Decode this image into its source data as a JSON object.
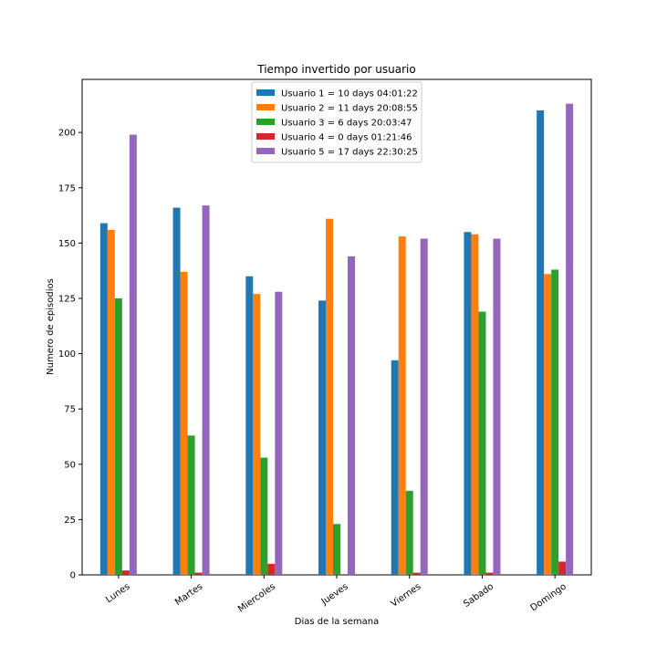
{
  "chart_data": {
    "type": "bar",
    "title": "Tiempo invertido por usuario",
    "xlabel": "Dias de la semana",
    "ylabel": "Numero de episodios",
    "ylim": [
      0,
      224
    ],
    "yticks": [
      0,
      25,
      50,
      75,
      100,
      125,
      150,
      175,
      200
    ],
    "categories": [
      "Lunes",
      "Martes",
      "Miercoles",
      "Jueves",
      "Viernes",
      "Sabado",
      "Domingo"
    ],
    "legend_position": "top-center",
    "series": [
      {
        "name": "Usuario 1 = 10 days 04:01:22",
        "color": "#1f77b4",
        "values": [
          159,
          166,
          135,
          124,
          97,
          155,
          210
        ]
      },
      {
        "name": "Usuario 2 = 11 days 20:08:55",
        "color": "#ff7f0e",
        "values": [
          156,
          137,
          127,
          161,
          153,
          154,
          136
        ]
      },
      {
        "name": "Usuario 3 = 6 days 20:03:47",
        "color": "#2ca02c",
        "values": [
          125,
          63,
          53,
          23,
          38,
          119,
          138
        ]
      },
      {
        "name": "Usuario 4 = 0 days 01:21:46",
        "color": "#d62728",
        "values": [
          2,
          1,
          5,
          0,
          1,
          1,
          6
        ]
      },
      {
        "name": "Usuario 5 = 17 days 22:30:25",
        "color": "#9467bd",
        "values": [
          199,
          167,
          128,
          144,
          152,
          152,
          213
        ]
      }
    ]
  }
}
